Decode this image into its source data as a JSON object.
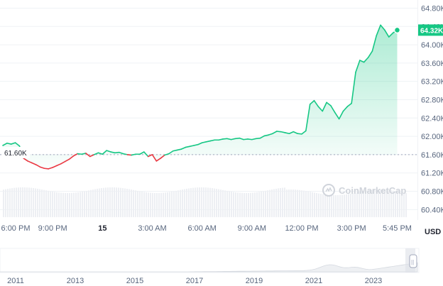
{
  "chart_data": {
    "type": "line",
    "currency": "USD",
    "watermark": "CoinMarketCap",
    "reference_value": 61600,
    "reference_label": "61.60K",
    "current_value": 64320,
    "current_label": "64.32K",
    "ylim": [
      60250,
      64900
    ],
    "y_ticks": [
      {
        "value": 64800,
        "label": "64.80K"
      },
      {
        "value": 64400,
        "label": "64.40K"
      },
      {
        "value": 64000,
        "label": "64.00K"
      },
      {
        "value": 63600,
        "label": "63.60K"
      },
      {
        "value": 63200,
        "label": "63.20K"
      },
      {
        "value": 62800,
        "label": "62.80K"
      },
      {
        "value": 62400,
        "label": "62.40K"
      },
      {
        "value": 62000,
        "label": "62.00K"
      },
      {
        "value": 61600,
        "label": "61.60K"
      },
      {
        "value": 61200,
        "label": "61.20K"
      },
      {
        "value": 60800,
        "label": "60.80K"
      },
      {
        "value": 60400,
        "label": "60.40K"
      }
    ],
    "x_range": [
      0,
      24.2
    ],
    "x_ticks": [
      {
        "value": 0.0,
        "label": "6:00 PM",
        "bold": false
      },
      {
        "value": 3.0,
        "label": "9:00 PM",
        "bold": false
      },
      {
        "value": 6.0,
        "label": "15",
        "bold": true
      },
      {
        "value": 9.0,
        "label": "3:00 AM",
        "bold": false
      },
      {
        "value": 12.0,
        "label": "6:00 AM",
        "bold": false
      },
      {
        "value": 15.0,
        "label": "9:00 AM",
        "bold": false
      },
      {
        "value": 18.0,
        "label": "12:00 PM",
        "bold": false
      },
      {
        "value": 21.0,
        "label": "3:00 PM",
        "bold": false
      },
      {
        "value": 23.75,
        "label": "5:45 PM",
        "bold": false
      }
    ],
    "series": [
      {
        "x": [
          0.0,
          0.25,
          0.5,
          0.75,
          1.0,
          1.25,
          1.5,
          1.75,
          2.0,
          2.25,
          2.5,
          2.75,
          3.0,
          3.25,
          3.5,
          3.75,
          4.0,
          4.25,
          4.5,
          4.75,
          5.0,
          5.25,
          5.5,
          5.75,
          6.0,
          6.25,
          6.5,
          6.75,
          7.0,
          7.25,
          7.5,
          7.75,
          8.0,
          8.25,
          8.5,
          8.75,
          9.0,
          9.25,
          9.5,
          9.75,
          10.0,
          10.25,
          10.5,
          10.75,
          11.0,
          11.25,
          11.5,
          11.75,
          12.0,
          12.25,
          12.5,
          12.75,
          13.0,
          13.25,
          13.5,
          13.75,
          14.0,
          14.25,
          14.5,
          14.75,
          15.0,
          15.25,
          15.5,
          15.75,
          16.0,
          16.25,
          16.5,
          16.75,
          17.0,
          17.25,
          17.5,
          17.75,
          18.0,
          18.25,
          18.5,
          18.75,
          19.0,
          19.25,
          19.5,
          19.75,
          20.0,
          20.25,
          20.5,
          20.75,
          21.0,
          21.25,
          21.5,
          21.75,
          22.0,
          22.25,
          22.5,
          22.75,
          23.0,
          23.25,
          23.5,
          23.75
        ],
        "values": [
          61800,
          61850,
          61830,
          61860,
          61790,
          61520,
          61460,
          61420,
          61380,
          61330,
          61300,
          61290,
          61320,
          61360,
          61400,
          61450,
          61500,
          61570,
          61620,
          61610,
          61630,
          61560,
          61600,
          61640,
          61610,
          61690,
          61660,
          61640,
          61650,
          61620,
          61600,
          61590,
          61610,
          61610,
          61660,
          61560,
          61600,
          61460,
          61520,
          61590,
          61620,
          61680,
          61700,
          61720,
          61760,
          61780,
          61800,
          61820,
          61860,
          61880,
          61900,
          61920,
          61920,
          61940,
          61950,
          61930,
          61950,
          61960,
          61930,
          61940,
          61930,
          61950,
          61960,
          62010,
          62030,
          62060,
          62110,
          62100,
          62080,
          62060,
          62100,
          62060,
          62050,
          62120,
          62700,
          62780,
          62650,
          62550,
          62740,
          62670,
          62520,
          62380,
          62550,
          62650,
          62720,
          63400,
          63660,
          63620,
          63720,
          63860,
          64200,
          64430,
          64320,
          64170,
          64260,
          64320
        ]
      }
    ]
  },
  "navigator": {
    "year_labels": [
      "2011",
      "2013",
      "2015",
      "2017",
      "2019",
      "2021",
      "2023"
    ],
    "handle_glyph": "||"
  }
}
